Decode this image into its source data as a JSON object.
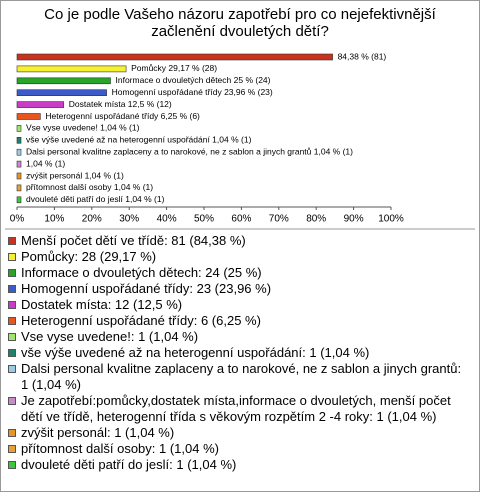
{
  "chart_data": {
    "type": "bar",
    "orientation": "horizontal",
    "title": "Co je podle Vašeho názoru zapotřebí pro co nejefektivnější začlenění dvouletých dětí?",
    "values": [
      84.38,
      29.17,
      25,
      23.96,
      12.5,
      6.25,
      1.04,
      1.04,
      1.04,
      1.04,
      1.04,
      1.04,
      1.04
    ],
    "value_labels": [
      "84,38 % (81)",
      "Pomůcky 29,17 % (28)",
      "Informace o dvouletých dětech 25 % (24)",
      "Homogenní uspořádané třídy 23,96 % (23)",
      "Dostatek místa 12,5 % (12)",
      "Heterogenní uspořádané třídy 6,25 % (6)",
      "Vse vyse uvedene! 1,04 % (1)",
      "vše výše uvedené až na heterogenní uspořádání 1,04 % (1)",
      "Dalsi personal kvalitne zaplaceny a to narokové, ne z sablon a jinych grantů 1,04 % (1)",
      "1,04 % (1)",
      "zvýšit personál 1,04 % (1)",
      "přítomnost další osoby 1,04 % (1)",
      "dvouleté děti patří do jeslí 1,04 % (1)"
    ],
    "categories": [
      "Menší počet dětí ve třídě: 81 (84,38 %)",
      "Pomůcky: 28 (29,17 %)",
      "Informace o dvouletých dětech: 24 (25 %)",
      "Homogenní uspořádané třídy: 23 (23,96 %)",
      "Dostatek místa: 12 (12,5 %)",
      "Heterogenní uspořádané třídy: 6 (6,25 %)",
      "Vse vyse uvedene!: 1 (1,04 %)",
      "vše výše uvedené až na heterogenní uspořádání: 1 (1,04 %)",
      "Dalsi personal kvalitne zaplaceny a to narokové, ne z sablon a jinych grantů: 1 (1,04 %)",
      "Je zapotřebí:pomůcky,dostatek místa,informace o dvouletých, menší počet dětí ve třídě, heterogenní třída s věkovým rozpětím 2 -4 roky: 1 (1,04 %)",
      "zvýšit personál: 1 (1,04 %)",
      "přítomnost další osoby: 1 (1,04 %)",
      "dvouleté děti patří do jeslí: 1 (1,04 %)"
    ],
    "colors": [
      "#c8321e",
      "#f5f032",
      "#28a428",
      "#3c5ac8",
      "#c83cc8",
      "#e8561e",
      "#a0e66e",
      "#1e826e",
      "#9ccbe6",
      "#c88cc8",
      "#e69628",
      "#e6a03c",
      "#3cc83c"
    ],
    "xlim": [
      0,
      100
    ],
    "xticks": [
      {
        "value": 0,
        "label": "0%"
      },
      {
        "value": 10,
        "label": "10%"
      },
      {
        "value": 20,
        "label": "20%"
      },
      {
        "value": 30,
        "label": "30%"
      },
      {
        "value": 40,
        "label": "40%"
      },
      {
        "value": 50,
        "label": "50%"
      },
      {
        "value": 60,
        "label": "60%"
      },
      {
        "value": 70,
        "label": "70%"
      },
      {
        "value": 80,
        "label": "80%"
      },
      {
        "value": 90,
        "label": "90%"
      },
      {
        "value": 100,
        "label": "100%"
      }
    ],
    "grid": false
  }
}
